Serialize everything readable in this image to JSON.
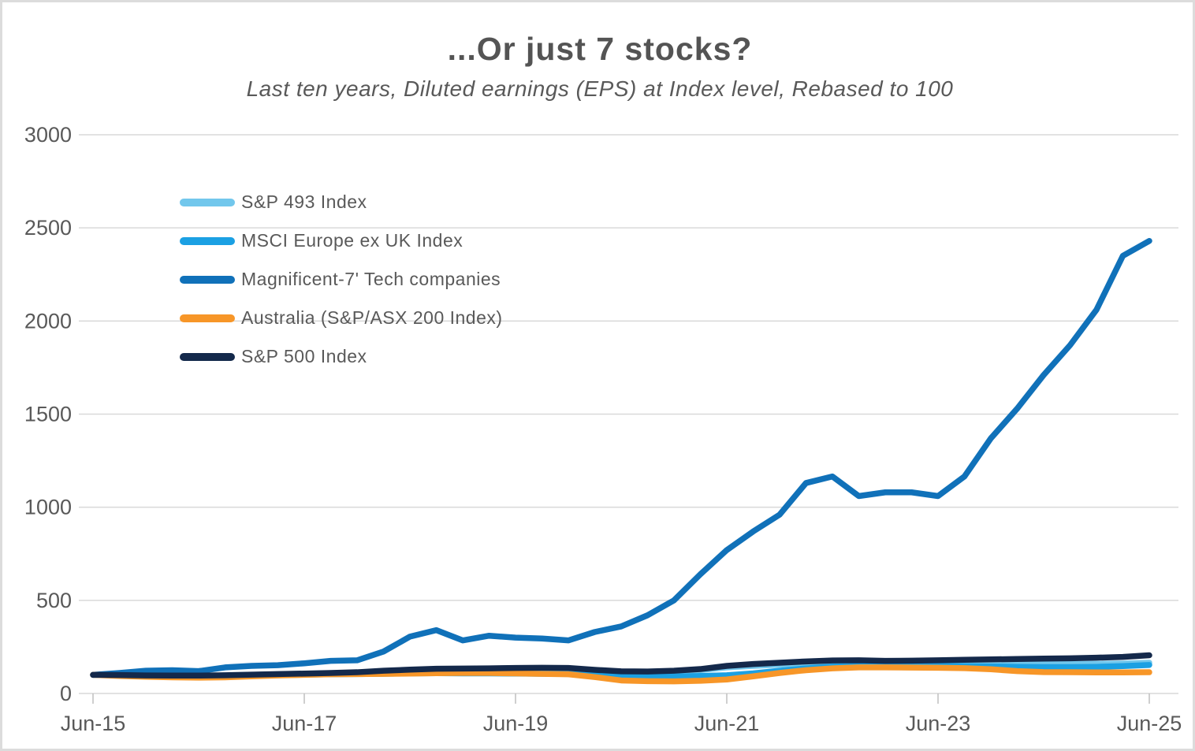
{
  "chart_data": {
    "type": "line",
    "title": "...Or just 7 stocks?",
    "subtitle": "Last ten years,  Diluted earnings (EPS)  at Index level, Rebased to 100",
    "xlabel": "",
    "ylabel": "",
    "ylim": [
      0,
      3000
    ],
    "y_ticks": [
      0,
      500,
      1000,
      1500,
      2000,
      2500,
      3000
    ],
    "x_tick_labels": [
      "Jun-15",
      "Jun-17",
      "Jun-19",
      "Jun-21",
      "Jun-23",
      "Jun-25"
    ],
    "x_tick_positions_quarter_index": [
      0,
      8,
      16,
      24,
      32,
      40
    ],
    "x_frequency": "quarterly",
    "x_range": "Jun-2015 to Jun-2025 (41 quarterly points)",
    "grid": "horizontal-only",
    "legend_position": "inside-upper-left",
    "colors": {
      "grid": "#d9d9d9",
      "axis": "#bfbfbf",
      "text": "#595959"
    },
    "series": [
      {
        "name": "S&P 493 Index",
        "slug": "sp493",
        "color": "#72c7ec",
        "values": [
          100,
          99,
          97,
          95,
          95,
          97,
          100,
          103,
          106,
          109,
          112,
          119,
          125,
          129,
          130,
          131,
          133,
          134,
          133,
          124,
          116,
          115,
          118,
          126,
          140,
          148,
          155,
          160,
          164,
          166,
          163,
          163,
          164,
          163,
          162,
          160,
          159,
          158,
          159,
          161,
          165
        ]
      },
      {
        "name": "MSCI Europe ex UK Index",
        "slug": "msci-europe-ex-uk",
        "color": "#1ba0e3",
        "values": [
          100,
          99,
          96,
          94,
          92,
          93,
          95,
          98,
          101,
          103,
          104,
          106,
          108,
          109,
          108,
          108,
          107,
          106,
          104,
          97,
          90,
          89,
          91,
          94,
          98,
          108,
          122,
          135,
          145,
          148,
          149,
          148,
          148,
          147,
          145,
          143,
          142,
          142,
          143,
          147,
          153
        ]
      },
      {
        "name": "Magnificent-7' Tech companies",
        "slug": "magnificent-7",
        "color": "#1071b9",
        "values": [
          100,
          110,
          122,
          125,
          120,
          140,
          148,
          152,
          162,
          175,
          178,
          225,
          305,
          340,
          285,
          310,
          300,
          295,
          285,
          330,
          360,
          420,
          500,
          640,
          770,
          870,
          960,
          1130,
          1165,
          1060,
          1080,
          1080,
          1060,
          1165,
          1370,
          1530,
          1710,
          1870,
          2060,
          2350,
          2430
        ]
      },
      {
        "name": "Australia (S&P/ASX 200 Index)",
        "slug": "australia-asx200",
        "color": "#f79628",
        "values": [
          100,
          94,
          90,
          87,
          85,
          87,
          92,
          97,
          100,
          103,
          104,
          105,
          107,
          109,
          110,
          110,
          108,
          105,
          103,
          88,
          70,
          66,
          65,
          68,
          75,
          92,
          110,
          125,
          135,
          140,
          140,
          139,
          138,
          136,
          130,
          120,
          115,
          114,
          113,
          113,
          114
        ]
      },
      {
        "name": "S&P 500 Index",
        "slug": "sp500",
        "color": "#14294b",
        "values": [
          100,
          99,
          97,
          96,
          96,
          98,
          101,
          104,
          107,
          110,
          114,
          122,
          128,
          133,
          134,
          135,
          137,
          138,
          137,
          127,
          119,
          118,
          122,
          131,
          148,
          158,
          165,
          172,
          177,
          178,
          175,
          176,
          178,
          181,
          183,
          185,
          187,
          189,
          192,
          196,
          205
        ]
      }
    ]
  }
}
